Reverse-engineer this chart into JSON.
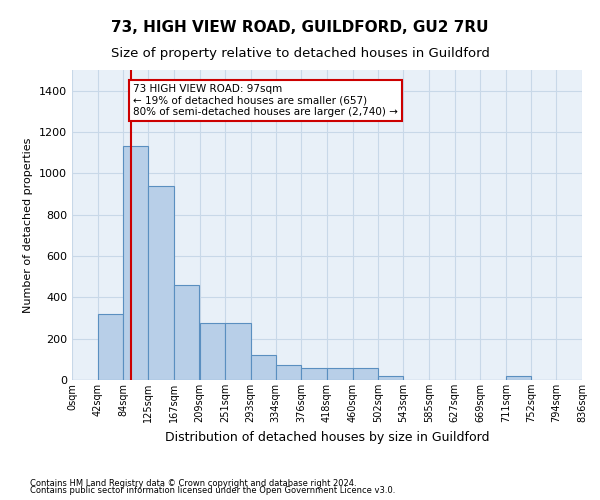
{
  "title1": "73, HIGH VIEW ROAD, GUILDFORD, GU2 7RU",
  "title2": "Size of property relative to detached houses in Guildford",
  "xlabel": "Distribution of detached houses by size in Guildford",
  "ylabel": "Number of detached properties",
  "footer1": "Contains HM Land Registry data © Crown copyright and database right 2024.",
  "footer2": "Contains public sector information licensed under the Open Government Licence v3.0.",
  "bin_edges": [
    0,
    42,
    84,
    125,
    167,
    209,
    251,
    293,
    334,
    376,
    418,
    460,
    502,
    543,
    585,
    627,
    669,
    711,
    752,
    794,
    836
  ],
  "bin_labels": [
    "0sqm",
    "42sqm",
    "84sqm",
    "125sqm",
    "167sqm",
    "209sqm",
    "251sqm",
    "293sqm",
    "334sqm",
    "376sqm",
    "418sqm",
    "460sqm",
    "502sqm",
    "543sqm",
    "585sqm",
    "627sqm",
    "669sqm",
    "711sqm",
    "752sqm",
    "794sqm",
    "836sqm"
  ],
  "bar_heights": [
    0,
    320,
    1130,
    940,
    460,
    275,
    275,
    120,
    75,
    60,
    60,
    60,
    20,
    0,
    0,
    0,
    0,
    20,
    0,
    0
  ],
  "bar_color": "#b8cfe8",
  "bar_edge_color": "#5a8fc0",
  "vline_x": 97,
  "vline_color": "#cc0000",
  "ylim": [
    0,
    1500
  ],
  "yticks": [
    0,
    200,
    400,
    600,
    800,
    1000,
    1200,
    1400
  ],
  "annotation_text": "73 HIGH VIEW ROAD: 97sqm\n← 19% of detached houses are smaller (657)\n80% of semi-detached houses are larger (2,740) →",
  "annotation_box_color": "#cc0000",
  "grid_color": "#c8d8e8",
  "bg_color": "#e8f0f8",
  "title1_fontsize": 11,
  "title2_fontsize": 9.5,
  "annotation_fontsize": 7.5
}
